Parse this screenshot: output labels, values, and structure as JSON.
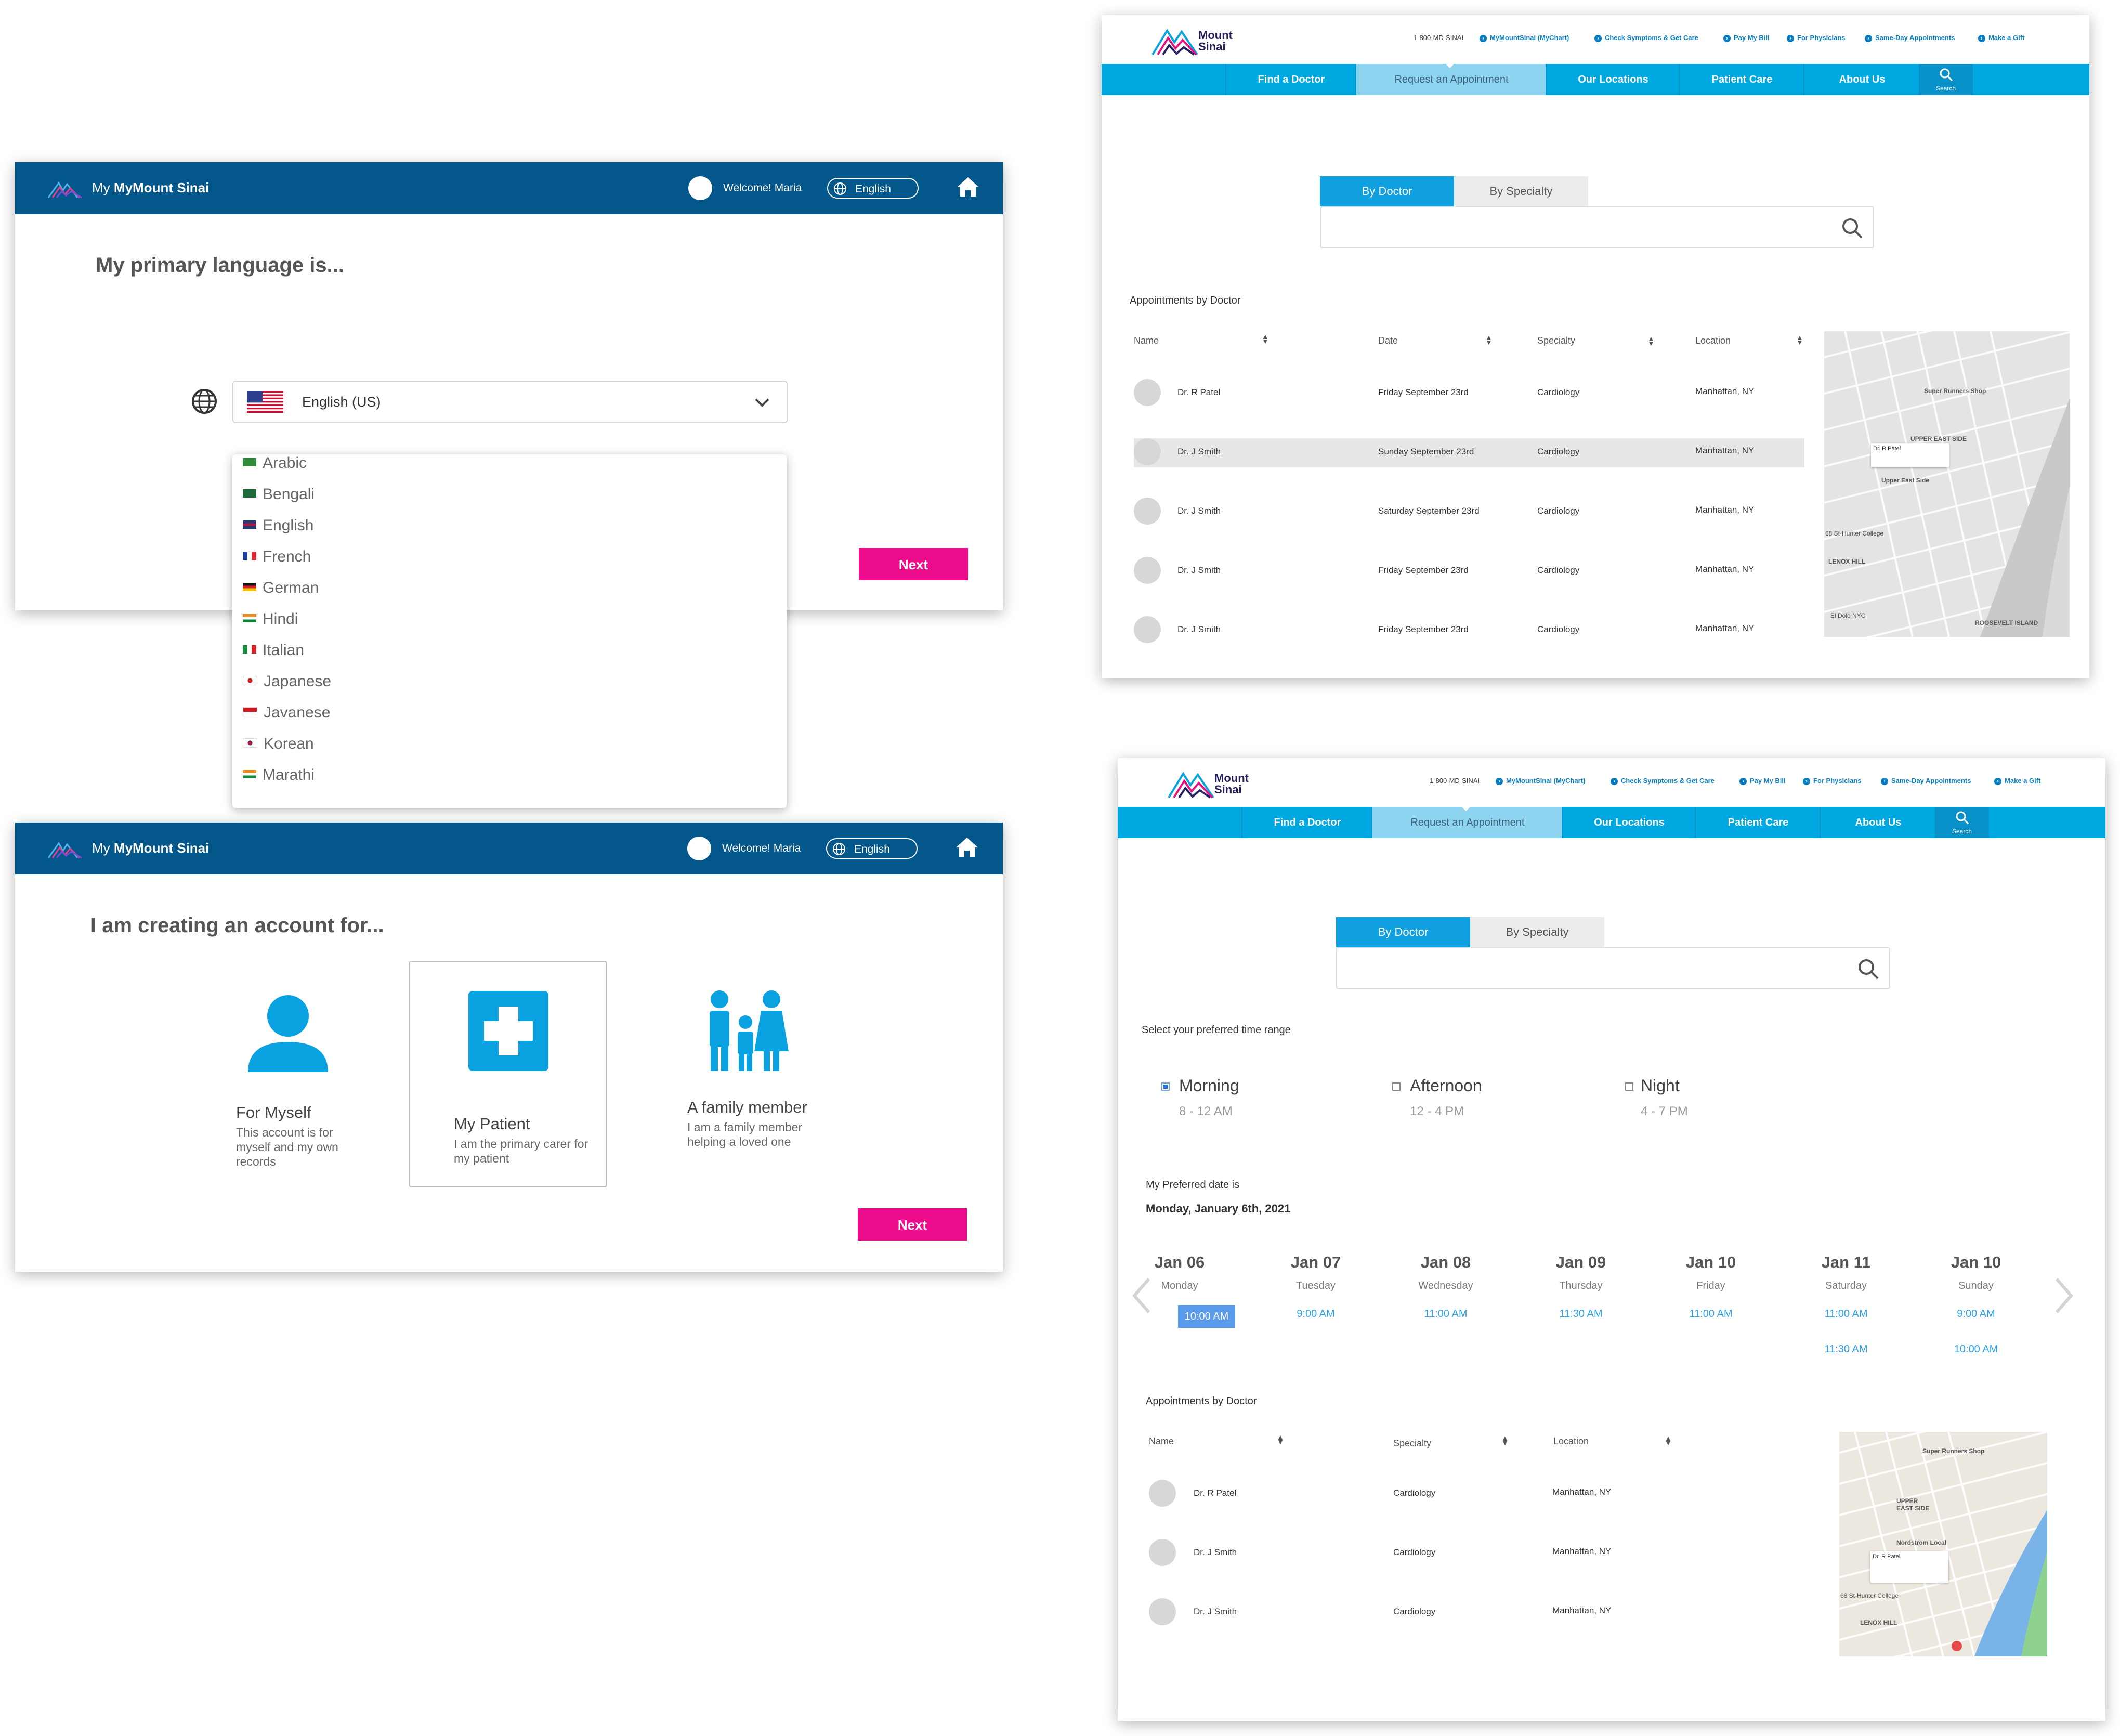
{
  "language_screen": {
    "header": {
      "prefix": "My",
      "brand": "MyMount Sinai",
      "welcome": "Welcome! Maria",
      "lang_button": "English"
    },
    "title": "My primary language is...",
    "selected_language": "English (US)",
    "options": [
      "Arabic",
      "Bengali",
      "English",
      "French",
      "German",
      "Hindi",
      "Italian",
      "Japanese",
      "Javanese",
      "Korean",
      "Marathi"
    ],
    "next_label": "Next"
  },
  "account_screen": {
    "header": {
      "prefix": "My",
      "brand": "MyMount Sinai",
      "welcome": "Welcome! Maria",
      "lang_button": "English"
    },
    "title": "I am creating an account for...",
    "options": [
      {
        "title": "For Myself",
        "desc": "This account is for myself and my own records",
        "icon": "person-icon"
      },
      {
        "title": "My Patient",
        "desc": "I am the primary carer for my patient",
        "icon": "medical-cross-icon"
      },
      {
        "title": "A family member",
        "desc": "I am a family member helping a loved one",
        "icon": "family-icon"
      }
    ],
    "next_label": "Next"
  },
  "site": {
    "logo_line1": "Mount",
    "logo_line2": "Sinai",
    "utility": {
      "phone": "1-800-MD-SINAI",
      "links": [
        "MyMountSinai (MyChart)",
        "Check Symptoms & Get Care",
        "Pay My Bill",
        "For Physicians",
        "Same-Day Appointments",
        "Make a Gift"
      ]
    },
    "nav": [
      "Find a Doctor",
      "Request an Appointment",
      "Our Locations",
      "Patient Care",
      "About Us"
    ],
    "search_label": "Search",
    "tabs": [
      "By Doctor",
      "By Specialty"
    ]
  },
  "appointments_screen": {
    "section_title": "Appointments by Doctor",
    "columns": [
      "Name",
      "Date",
      "Specialty",
      "Location"
    ],
    "rows": [
      {
        "name": "Dr. R Patel",
        "date": "Friday September 23rd",
        "specialty": "Cardiology",
        "location": "Manhattan, NY"
      },
      {
        "name": "Dr. J Smith",
        "date": "Sunday September 23rd",
        "specialty": "Cardiology",
        "location": "Manhattan, NY"
      },
      {
        "name": "Dr. J Smith",
        "date": "Saturday September 23rd",
        "specialty": "Cardiology",
        "location": "Manhattan, NY"
      },
      {
        "name": "Dr. J Smith",
        "date": "Friday September 23rd",
        "specialty": "Cardiology",
        "location": "Manhattan, NY"
      },
      {
        "name": "Dr. J Smith",
        "date": "Friday September 23rd",
        "specialty": "Cardiology",
        "location": "Manhattan, NY"
      }
    ],
    "map_labels": [
      "Super Runners Shop",
      "Dr. R Patel",
      "UPPER EAST SIDE",
      "Upper East Side",
      "68 St-Hunter College",
      "LENOX HILL",
      "ROOSEVELT ISLAND",
      "El Dolo NYC"
    ]
  },
  "time_screen": {
    "time_range_title": "Select your preferred time range",
    "time_ranges": [
      {
        "label": "Morning",
        "range": "8 - 12 AM",
        "checked": true
      },
      {
        "label": "Afternoon",
        "range": "12 - 4 PM",
        "checked": false
      },
      {
        "label": "Night",
        "range": "4 - 7 PM",
        "checked": false
      }
    ],
    "date_prefix": "My Preferred date is",
    "date_value": "Monday, January 6th, 2021",
    "days": [
      {
        "date": "Jan 06",
        "day": "Monday",
        "slots": [
          "10:00 AM"
        ]
      },
      {
        "date": "Jan 07",
        "day": "Tuesday",
        "slots": [
          "9:00 AM"
        ]
      },
      {
        "date": "Jan 08",
        "day": "Wednesday",
        "slots": [
          "11:00 AM"
        ]
      },
      {
        "date": "Jan 09",
        "day": "Thursday",
        "slots": [
          "11:30 AM"
        ]
      },
      {
        "date": "Jan 10",
        "day": "Friday",
        "slots": [
          "11:00 AM"
        ]
      },
      {
        "date": "Jan 11",
        "day": "Saturday",
        "slots": [
          "11:00 AM",
          "11:30 AM"
        ]
      },
      {
        "date": "Jan 10",
        "day": "Sunday",
        "slots": [
          "9:00 AM",
          "10:00 AM"
        ]
      }
    ],
    "section_title": "Appointments by Doctor",
    "columns": [
      "Name",
      "Specialty",
      "Location"
    ],
    "rows": [
      {
        "name": "Dr. R Patel",
        "specialty": "Cardiology",
        "location": "Manhattan, NY"
      },
      {
        "name": "Dr. J Smith",
        "specialty": "Cardiology",
        "location": "Manhattan, NY"
      },
      {
        "name": "Dr. J Smith",
        "specialty": "Cardiology",
        "location": "Manhattan, NY"
      }
    ],
    "map_labels": [
      "Super Runners Shop",
      "UPPER EAST SIDE",
      "Nordstrom Local",
      "Dr. R Patel",
      "68 St-Hunter College",
      "LENOX HILL"
    ]
  }
}
